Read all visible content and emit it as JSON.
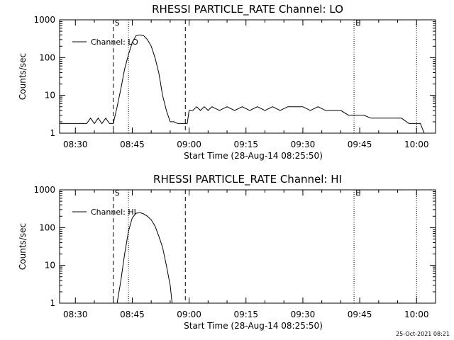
{
  "footer": {
    "timestamp": "25-Oct-2021 08:21"
  },
  "chart_data": [
    {
      "type": "line",
      "title": "RHESSI PARTICLE_RATE Channel: LO",
      "xlabel": "Start Time (28-Aug-14 08:25:50)",
      "ylabel": "Counts/sec",
      "x_ticks": [
        "08:30",
        "08:45",
        "09:00",
        "09:15",
        "09:30",
        "09:45",
        "10:00"
      ],
      "y_ticks": [
        "1",
        "10",
        "100",
        "1000"
      ],
      "yscale": "log",
      "ylim": [
        1,
        1000
      ],
      "xlim": [
        "08:25:50",
        "10:05:00"
      ],
      "legend": {
        "label": "Channel: LO",
        "position": "top-left"
      },
      "markers": [
        {
          "label": "S",
          "time": "08:40:00",
          "style": "dashed"
        },
        {
          "label": "",
          "time": "08:44:00",
          "style": "dotted"
        },
        {
          "label": "",
          "time": "08:59:00",
          "style": "dashed"
        },
        {
          "label": "E",
          "time": "09:43:30",
          "style": "dotted"
        },
        {
          "label": "",
          "time": "10:00:00",
          "style": "dotted"
        }
      ],
      "series": [
        {
          "name": "Channel: LO",
          "x": [
            "08:25:50",
            "08:27:00",
            "08:28:30",
            "08:30:00",
            "08:31:30",
            "08:33:00",
            "08:34:00",
            "08:35:00",
            "08:36:00",
            "08:37:00",
            "08:38:00",
            "08:39:00",
            "08:40:00",
            "08:41:00",
            "08:42:00",
            "08:43:00",
            "08:44:00",
            "08:45:00",
            "08:46:00",
            "08:47:00",
            "08:48:00",
            "08:49:00",
            "08:50:00",
            "08:51:00",
            "08:52:00",
            "08:53:00",
            "08:54:00",
            "08:55:00",
            "08:56:00",
            "08:57:00",
            "08:58:00",
            "08:59:00",
            "08:59:30",
            "09:00:00",
            "09:01:00",
            "09:02:00",
            "09:03:00",
            "09:04:00",
            "09:05:00",
            "09:06:00",
            "09:08:00",
            "09:10:00",
            "09:12:00",
            "09:14:00",
            "09:16:00",
            "09:18:00",
            "09:20:00",
            "09:22:00",
            "09:24:00",
            "09:26:00",
            "09:28:00",
            "09:30:00",
            "09:32:00",
            "09:34:00",
            "09:36:00",
            "09:38:00",
            "09:40:00",
            "09:42:00",
            "09:44:00",
            "09:46:00",
            "09:48:00",
            "09:50:00",
            "09:52:00",
            "09:54:00",
            "09:56:00",
            "09:58:00",
            "09:59:00",
            "10:00:00",
            "10:01:00",
            "10:02:00",
            "10:03:00"
          ],
          "y": [
            1.8,
            1.8,
            1.8,
            1.8,
            1.8,
            1.8,
            2.5,
            1.8,
            2.5,
            1.8,
            2.5,
            1.8,
            1.8,
            5,
            15,
            50,
            120,
            250,
            380,
            400,
            380,
            300,
            200,
            100,
            40,
            10,
            4,
            2,
            2,
            1.8,
            1.8,
            1.8,
            1.8,
            4,
            4,
            5,
            4,
            5,
            4,
            5,
            4,
            5,
            4,
            5,
            4,
            5,
            4,
            5,
            4,
            5,
            5,
            5,
            4,
            5,
            4,
            4,
            4,
            3,
            3,
            3,
            2.5,
            2.5,
            2.5,
            2.5,
            2.5,
            1.8,
            1.8,
            1.8,
            1.8,
            1,
            1
          ]
        }
      ]
    },
    {
      "type": "line",
      "title": "RHESSI PARTICLE_RATE Channel: HI",
      "xlabel": "Start Time (28-Aug-14 08:25:50)",
      "ylabel": "Counts/sec",
      "x_ticks": [
        "08:30",
        "08:45",
        "09:00",
        "09:15",
        "09:30",
        "09:45",
        "10:00"
      ],
      "y_ticks": [
        "1",
        "10",
        "100",
        "1000"
      ],
      "yscale": "log",
      "ylim": [
        1,
        1000
      ],
      "xlim": [
        "08:25:50",
        "10:05:00"
      ],
      "legend": {
        "label": "Channel: HI",
        "position": "top-left"
      },
      "markers": [
        {
          "label": "S",
          "time": "08:40:00",
          "style": "dashed"
        },
        {
          "label": "",
          "time": "08:44:00",
          "style": "dotted"
        },
        {
          "label": "",
          "time": "08:59:00",
          "style": "dashed"
        },
        {
          "label": "E",
          "time": "09:43:30",
          "style": "dotted"
        },
        {
          "label": "",
          "time": "10:00:00",
          "style": "dotted"
        }
      ],
      "series": [
        {
          "name": "Channel: HI",
          "x": [
            "08:41:00",
            "08:42:00",
            "08:43:00",
            "08:44:00",
            "08:45:00",
            "08:46:00",
            "08:47:00",
            "08:48:00",
            "08:49:00",
            "08:50:00",
            "08:51:00",
            "08:52:00",
            "08:53:00",
            "08:54:00",
            "08:55:00",
            "08:55:30"
          ],
          "y": [
            1,
            4,
            20,
            80,
            180,
            240,
            250,
            230,
            200,
            160,
            110,
            60,
            30,
            10,
            3,
            1
          ]
        }
      ]
    }
  ]
}
